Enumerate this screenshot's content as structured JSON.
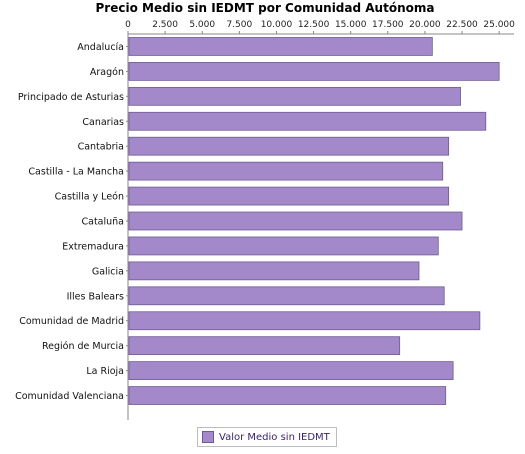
{
  "chart_data": {
    "type": "bar",
    "orientation": "horizontal",
    "title": "Precio Medio sin IEDMT por Comunidad Autónoma",
    "xlim": [
      0,
      26000
    ],
    "x_ticks": [
      0,
      2500,
      5000,
      7500,
      10000,
      12500,
      15000,
      17500,
      20000,
      22500,
      25000
    ],
    "x_tick_labels": [
      "0",
      "2.500",
      "5.000",
      "7.500",
      "10.000",
      "12.500",
      "15.000",
      "17.500",
      "20.000",
      "22.500",
      "25.000"
    ],
    "x_axis_position": "top",
    "grid": "vertical-dashed",
    "categories": [
      "Andalucía",
      "Aragón",
      "Principado de Asturias",
      "Canarias",
      "Cantabria",
      "Castilla - La Mancha",
      "Castilla y León",
      "Cataluña",
      "Extremadura",
      "Galicia",
      "Illes Balears",
      "Comunidad de Madrid",
      "Región de Murcia",
      "La Rioja",
      "Comunidad Valenciana"
    ],
    "series": [
      {
        "name": "Valor Medio sin IEDMT",
        "color": "#a389c9",
        "values": [
          20500,
          25000,
          22400,
          24100,
          21600,
          21200,
          21600,
          22500,
          20900,
          19600,
          21300,
          23700,
          18300,
          21900,
          21400
        ]
      }
    ],
    "legend_position": "bottom-center"
  }
}
